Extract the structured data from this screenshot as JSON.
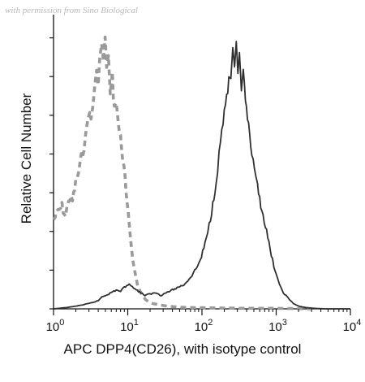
{
  "watermark": "with permission from Sino Biological",
  "chart_data": {
    "type": "line",
    "title": "",
    "xlabel": "APC DPP4(CD26), with isotype control",
    "ylabel": "Relative Cell Number",
    "x_scale": "log",
    "xlim": [
      1,
      10000
    ],
    "ylim": [
      0,
      1
    ],
    "x_ticks": [
      {
        "value": 1,
        "base": "10",
        "exp": "0"
      },
      {
        "value": 10,
        "base": "10",
        "exp": "1"
      },
      {
        "value": 100,
        "base": "10",
        "exp": "2"
      },
      {
        "value": 1000,
        "base": "10",
        "exp": "3"
      },
      {
        "value": 10000,
        "base": "10",
        "exp": "4"
      }
    ],
    "grid": false,
    "series": [
      {
        "style": "dashed",
        "color": "#9a9a9a",
        "x": [
          1.0,
          1.15,
          1.3,
          1.45,
          1.6,
          1.8,
          2.0,
          2.2,
          2.45,
          2.7,
          2.95,
          3.2,
          3.4,
          3.6,
          3.8,
          4.0,
          4.2,
          4.45,
          4.7,
          4.95,
          5.2,
          5.5,
          5.8,
          6.2,
          6.6,
          7.0,
          7.5,
          8.0,
          8.6,
          9.2,
          9.8,
          10.5,
          11.3,
          12.2,
          13.5,
          15.5,
          18.0,
          22.0,
          30.0,
          50.0,
          100.0,
          200.0,
          400.0,
          1000.0,
          3000.0
        ],
        "values": [
          0.33,
          0.36,
          0.38,
          0.34,
          0.41,
          0.4,
          0.47,
          0.51,
          0.58,
          0.63,
          0.73,
          0.7,
          0.76,
          0.82,
          0.87,
          0.85,
          0.93,
          0.97,
          0.92,
          1.0,
          0.88,
          0.95,
          0.79,
          0.86,
          0.74,
          0.78,
          0.67,
          0.64,
          0.55,
          0.48,
          0.38,
          0.31,
          0.22,
          0.15,
          0.09,
          0.05,
          0.03,
          0.02,
          0.012,
          0.006,
          0.004,
          0.003,
          0.002,
          0.002,
          0.0
        ]
      },
      {
        "style": "solid",
        "color": "#2f2f2f",
        "x": [
          1.0,
          1.5,
          2.0,
          2.5,
          3.0,
          3.5,
          4.0,
          4.5,
          5.0,
          6.0,
          7.0,
          8.0,
          9.0,
          10.0,
          11.5,
          13.0,
          15.0,
          17.0,
          20.0,
          24.0,
          28.0,
          33.0,
          40.0,
          48.0,
          57.0,
          67.0,
          80.0,
          95.0,
          110.0,
          125.0,
          140.0,
          155.0,
          170.0,
          185.0,
          200.0,
          215.0,
          230.0,
          245.0,
          260.0,
          275.0,
          290.0,
          305.0,
          320.0,
          340.0,
          360.0,
          385.0,
          410.0,
          440.0,
          470.0,
          510.0,
          560.0,
          620.0,
          690.0,
          770.0,
          860.0,
          970.0,
          1100.0,
          1250.0,
          1450.0,
          1700.0,
          2000.0,
          2500.0,
          3200.0,
          4500.0,
          7000.0,
          10000.0
        ],
        "values": [
          0.0,
          0.005,
          0.01,
          0.015,
          0.02,
          0.025,
          0.03,
          0.045,
          0.05,
          0.06,
          0.07,
          0.065,
          0.08,
          0.09,
          0.085,
          0.07,
          0.06,
          0.05,
          0.055,
          0.06,
          0.05,
          0.06,
          0.07,
          0.08,
          0.09,
          0.11,
          0.14,
          0.18,
          0.24,
          0.31,
          0.39,
          0.48,
          0.57,
          0.66,
          0.73,
          0.79,
          0.84,
          0.86,
          0.95,
          0.88,
          0.97,
          0.86,
          0.93,
          0.82,
          0.89,
          0.76,
          0.71,
          0.63,
          0.57,
          0.5,
          0.45,
          0.39,
          0.33,
          0.26,
          0.2,
          0.14,
          0.09,
          0.06,
          0.04,
          0.02,
          0.01,
          0.005,
          0.002,
          0.0,
          0.0,
          0.0
        ]
      }
    ]
  }
}
